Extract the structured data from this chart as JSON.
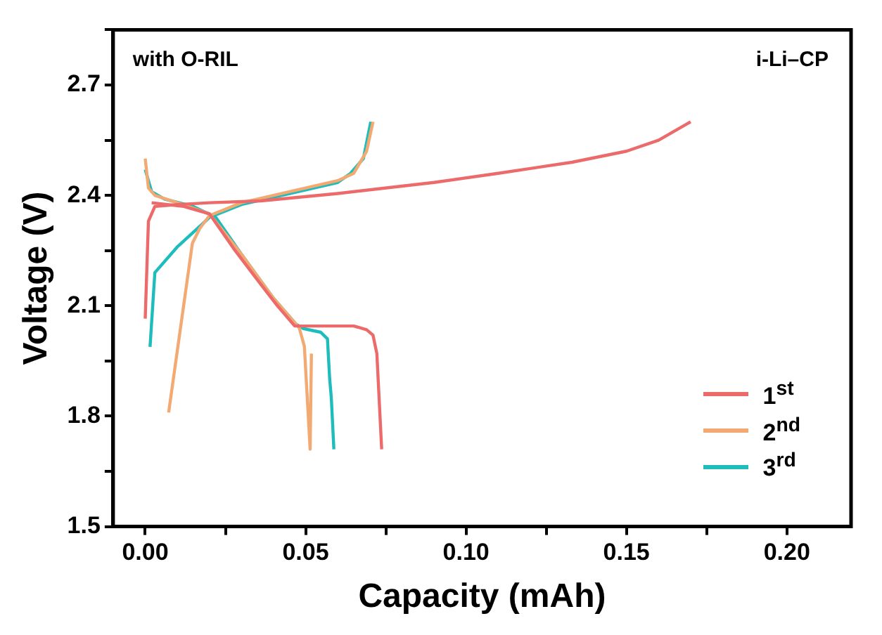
{
  "chart_data": {
    "type": "line",
    "xlabel": "Capacity (mAh)",
    "ylabel": "Voltage (V)",
    "annotations": [
      "with O-RIL",
      "i-Li–CP"
    ],
    "xlim": [
      -0.01,
      0.22
    ],
    "ylim": [
      1.5,
      2.85
    ],
    "xticks": [
      {
        "value": 0,
        "label": "0.00"
      },
      {
        "value": 0.025,
        "label": null
      },
      {
        "value": 0.05,
        "label": "0.05"
      },
      {
        "value": 0.075,
        "label": null
      },
      {
        "value": 0.1,
        "label": "0.10"
      },
      {
        "value": 0.125,
        "label": null
      },
      {
        "value": 0.15,
        "label": "0.15"
      },
      {
        "value": 0.175,
        "label": null
      },
      {
        "value": 0.2,
        "label": "0.20"
      }
    ],
    "yticks": [
      1.5,
      {
        "value": 1.65,
        "label": null
      },
      1.8,
      {
        "value": 1.95,
        "label": null
      },
      2.1,
      {
        "value": 2.25,
        "label": null
      },
      2.4,
      {
        "value": 2.55,
        "label": null
      },
      2.7,
      {
        "value": 2.85,
        "label": null
      }
    ],
    "grid": false,
    "legend": "bottom right",
    "marker": "none",
    "line_style": "solid",
    "series": [
      {
        "name": "1$^{st}$",
        "color": "#ec6a6a",
        "x": [
          0.002,
          0.012,
          0.02,
          0.0276,
          0.035,
          0.0412,
          0.0466,
          0.055,
          0.065,
          0.069,
          0.071,
          0.0722,
          0.0737
        ],
        "values": [
          2.38,
          2.37,
          2.35,
          2.255,
          2.17,
          2.1,
          2.045,
          2.045,
          2.045,
          2.035,
          2.02,
          1.97,
          1.71
        ]
      },
      {
        "color": "#ec6a6a",
        "x": [
          0.0,
          0.0005,
          0.001,
          0.003,
          0.01,
          0.02,
          0.036,
          0.06,
          0.09,
          0.11,
          0.133,
          0.15,
          0.16,
          0.17
        ],
        "values": [
          2.065,
          2.2,
          2.33,
          2.37,
          2.375,
          2.38,
          2.385,
          2.405,
          2.435,
          2.46,
          2.49,
          2.52,
          2.55,
          2.6
        ]
      },
      {
        "name": "2$^{nd}$",
        "color": "#f2aa72",
        "x": [
          0.0,
          0.001,
          0.003,
          0.01,
          0.02,
          0.03,
          0.04,
          0.046,
          0.048,
          0.0496,
          0.0505,
          0.0514,
          0.0518
        ],
        "values": [
          2.5,
          2.42,
          2.4,
          2.38,
          2.35,
          2.24,
          2.12,
          2.06,
          2.04,
          1.99,
          1.85,
          1.71,
          1.97
        ]
      },
      {
        "color": "#f2aa72",
        "x": [
          0.0073,
          0.0147,
          0.017,
          0.02,
          0.03,
          0.045,
          0.06,
          0.065,
          0.069,
          0.071
        ],
        "values": [
          1.81,
          2.27,
          2.31,
          2.345,
          2.38,
          2.41,
          2.44,
          2.46,
          2.52,
          2.6
        ]
      },
      {
        "name": "3$^{rd}$",
        "color": "#1fbcbc",
        "x": [
          0.0,
          0.002,
          0.006,
          0.015,
          0.022,
          0.03,
          0.04,
          0.047,
          0.0493,
          0.0547,
          0.0568,
          0.0575,
          0.058,
          0.0588
        ],
        "values": [
          2.47,
          2.41,
          2.39,
          2.37,
          2.34,
          2.24,
          2.12,
          2.05,
          2.038,
          2.028,
          2.01,
          1.9,
          1.85,
          1.71
        ]
      },
      {
        "color": "#1fbcbc",
        "x": [
          0.0015,
          0.003,
          0.01,
          0.02,
          0.03,
          0.045,
          0.06,
          0.064,
          0.068,
          0.0703
        ],
        "values": [
          1.988,
          2.19,
          2.26,
          2.34,
          2.375,
          2.405,
          2.435,
          2.46,
          2.5,
          2.6
        ]
      }
    ]
  }
}
